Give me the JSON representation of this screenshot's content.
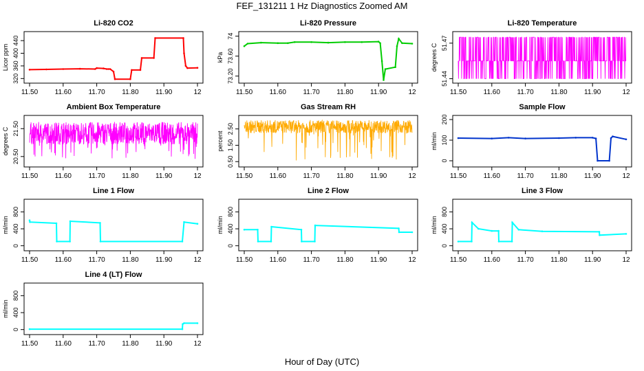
{
  "figure": {
    "title": "FEF_131211  1 Hz Diagnostics Zoomed AM",
    "xlabel": "Hour of Day (UTC)"
  },
  "chart_data": [
    {
      "id": "co2",
      "type": "line",
      "title": "Li-820 CO2",
      "ylabel": "Licor ppm",
      "color": "#ff0000",
      "xlim": [
        11.5,
        12.0
      ],
      "ylim": [
        312,
        462
      ],
      "xticks": [
        11.5,
        11.6,
        11.7,
        11.8,
        11.9,
        12.0
      ],
      "yticks": [
        320,
        360,
        400,
        440
      ],
      "x": [
        11.5,
        11.55,
        11.6,
        11.65,
        11.695,
        11.7,
        11.72,
        11.73,
        11.735,
        11.74,
        11.75,
        11.754,
        11.8,
        11.804,
        11.83,
        11.834,
        11.87,
        11.874,
        11.958,
        11.96,
        11.965,
        11.97,
        12.0
      ],
      "y": [
        348,
        349,
        350,
        351,
        350,
        353,
        352,
        350,
        350,
        350,
        342,
        318,
        318,
        347,
        347,
        385,
        385,
        448,
        448,
        400,
        360,
        353,
        354
      ]
    },
    {
      "id": "pressure",
      "type": "line",
      "title": "Li-820 Pressure",
      "ylabel": "kPa",
      "color": "#00cc00",
      "xlim": [
        11.5,
        12.0
      ],
      "ylim": [
        73.1,
        74.05
      ],
      "xticks": [
        11.5,
        11.6,
        11.7,
        11.8,
        11.9,
        12.0
      ],
      "yticks": [
        73.2,
        73.6,
        74.0
      ],
      "x": [
        11.5,
        11.51,
        11.55,
        11.6,
        11.63,
        11.65,
        11.7,
        11.75,
        11.8,
        11.85,
        11.9,
        11.905,
        11.91,
        11.915,
        11.92,
        11.95,
        11.955,
        11.96,
        11.97,
        12.0
      ],
      "y": [
        73.8,
        73.85,
        73.87,
        73.86,
        73.86,
        73.88,
        73.88,
        73.87,
        73.88,
        73.88,
        73.89,
        73.86,
        73.5,
        73.12,
        73.34,
        73.38,
        73.8,
        73.95,
        73.86,
        73.85
      ]
    },
    {
      "id": "licor_temp",
      "type": "line",
      "title": "Li-820 Temperature",
      "ylabel": "degrees C",
      "color": "#ff00ff",
      "xlim": [
        11.5,
        12.0
      ],
      "ylim": [
        51.438,
        51.478
      ],
      "xticks": [
        11.5,
        11.6,
        11.7,
        11.8,
        11.9,
        12.0
      ],
      "yticks": [
        51.44,
        51.47
      ],
      "x": [
        11.5,
        12.0
      ],
      "y": [
        51.455,
        51.455
      ],
      "levels": [
        51.44,
        51.455,
        51.475
      ]
    },
    {
      "id": "ambient_box",
      "type": "line",
      "title": "Ambient Box Temperature",
      "ylabel": "degrees C",
      "color": "#ff00ff",
      "xlim": [
        11.5,
        12.0
      ],
      "ylim": [
        20.2,
        21.9
      ],
      "xticks": [
        11.5,
        11.6,
        11.7,
        11.8,
        11.9,
        12.0
      ],
      "yticks": [
        20.5,
        21.5
      ],
      "x": [
        11.5,
        12.0
      ],
      "y": [
        21.3,
        21.3
      ],
      "noise": [
        20.4,
        21.8
      ]
    },
    {
      "id": "gas_rh",
      "type": "line",
      "title": "Gas Stream RH",
      "ylabel": "percent",
      "color": "#ffaa00",
      "xlim": [
        11.5,
        12.0
      ],
      "ylim": [
        0.3,
        3.2
      ],
      "xticks": [
        11.5,
        11.6,
        11.7,
        11.8,
        11.9,
        12.0
      ],
      "yticks": [
        0.5,
        1.5,
        2.5
      ],
      "x": [
        11.5,
        12.0
      ],
      "y": [
        2.6,
        2.6
      ],
      "noise": [
        0.5,
        3.1
      ]
    },
    {
      "id": "sample_flow",
      "type": "line",
      "title": "Sample Flow",
      "ylabel": "ml/min",
      "color": "#0033cc",
      "xlim": [
        11.5,
        12.0
      ],
      "ylim": [
        -20,
        210
      ],
      "xticks": [
        11.5,
        11.6,
        11.7,
        11.8,
        11.9,
        12.0
      ],
      "yticks": [
        0,
        100,
        200
      ],
      "x": [
        11.5,
        11.6,
        11.65,
        11.7,
        11.8,
        11.85,
        11.9,
        11.91,
        11.915,
        11.95,
        11.955,
        11.96,
        12.0
      ],
      "y": [
        110,
        108,
        112,
        108,
        110,
        112,
        112,
        108,
        0,
        0,
        110,
        118,
        104
      ]
    },
    {
      "id": "line1",
      "type": "line",
      "title": "Line 1 Flow",
      "ylabel": "ml/min",
      "color": "#00ffff",
      "xlim": [
        11.5,
        12.0
      ],
      "ylim": [
        -70,
        1050
      ],
      "xticks": [
        11.5,
        11.6,
        11.7,
        11.8,
        11.9,
        12.0
      ],
      "yticks": [
        0,
        400,
        800
      ],
      "x": [
        11.5,
        11.501,
        11.58,
        11.581,
        11.62,
        11.621,
        11.71,
        11.711,
        11.955,
        11.96,
        12.0
      ],
      "y": [
        600,
        560,
        530,
        100,
        100,
        580,
        540,
        100,
        100,
        560,
        520
      ]
    },
    {
      "id": "line2",
      "type": "line",
      "title": "Line 2 Flow",
      "ylabel": "ml/min",
      "color": "#00ffff",
      "xlim": [
        11.5,
        12.0
      ],
      "ylim": [
        -70,
        1050
      ],
      "xticks": [
        11.5,
        11.6,
        11.7,
        11.8,
        11.9,
        12.0
      ],
      "yticks": [
        0,
        400,
        800
      ],
      "x": [
        11.5,
        11.54,
        11.541,
        11.58,
        11.581,
        11.67,
        11.671,
        11.71,
        11.711,
        11.96,
        11.961,
        12.0
      ],
      "y": [
        380,
        380,
        100,
        100,
        450,
        380,
        100,
        100,
        480,
        410,
        320,
        320
      ]
    },
    {
      "id": "line3",
      "type": "line",
      "title": "Line 3 Flow",
      "ylabel": "ml/min",
      "color": "#00ffff",
      "xlim": [
        11.5,
        12.0
      ],
      "ylim": [
        -70,
        1050
      ],
      "xticks": [
        11.5,
        11.6,
        11.7,
        11.8,
        11.9,
        12.0
      ],
      "yticks": [
        0,
        400,
        800
      ],
      "x": [
        11.5,
        11.54,
        11.541,
        11.56,
        11.6,
        11.62,
        11.621,
        11.66,
        11.661,
        11.68,
        11.75,
        11.92,
        11.921,
        12.0
      ],
      "y": [
        100,
        100,
        550,
        400,
        350,
        350,
        100,
        100,
        550,
        380,
        340,
        330,
        250,
        280
      ]
    },
    {
      "id": "line4",
      "type": "line",
      "title": "Line 4 (LT) Flow",
      "ylabel": "ml/min",
      "color": "#00ffff",
      "xlim": [
        11.5,
        12.0
      ],
      "ylim": [
        -70,
        1050
      ],
      "xticks": [
        11.5,
        11.6,
        11.7,
        11.8,
        11.9,
        12.0
      ],
      "yticks": [
        0,
        400,
        800
      ],
      "x": [
        11.5,
        11.955,
        11.956,
        11.96,
        12.0
      ],
      "y": [
        10,
        10,
        130,
        150,
        150
      ]
    }
  ]
}
